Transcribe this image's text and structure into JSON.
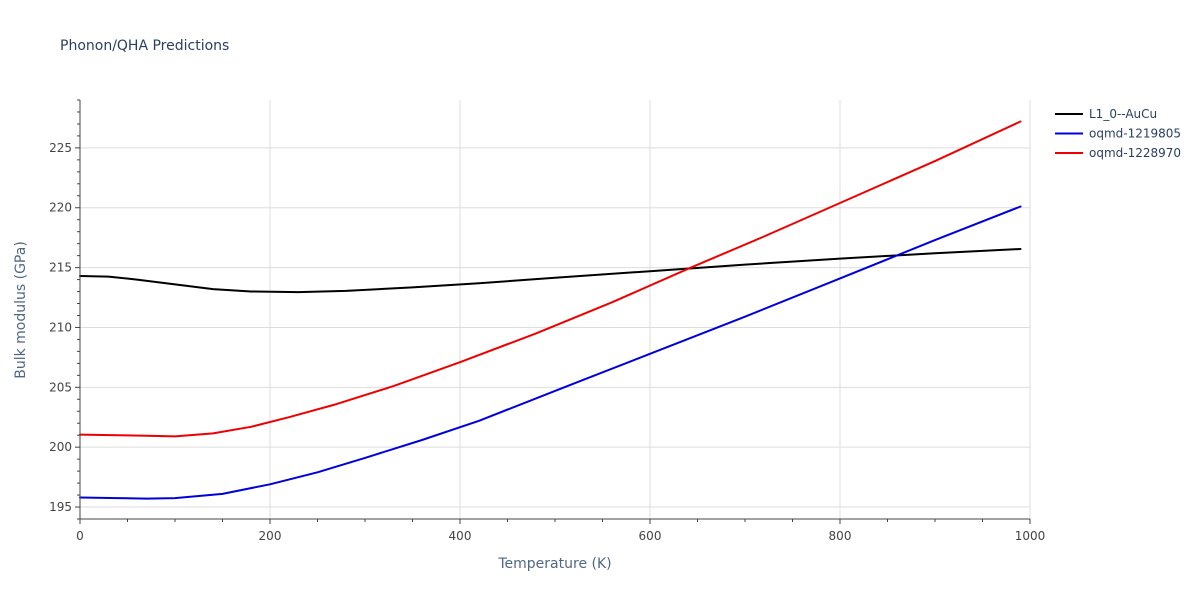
{
  "chart_data": {
    "type": "line",
    "title": "Phonon/QHA Predictions",
    "xlabel": "Temperature (K)",
    "ylabel": "Bulk modulus (GPa)",
    "xlim": [
      0,
      1000
    ],
    "ylim": [
      194,
      229
    ],
    "xticks": [
      0,
      200,
      400,
      600,
      800,
      1000
    ],
    "yticks": [
      195,
      200,
      205,
      210,
      215,
      220,
      225
    ],
    "grid": true,
    "legend_position": "top-right",
    "series": [
      {
        "name": "L1_0--AuCu",
        "color": "#000000",
        "x": [
          0,
          30,
          60,
          100,
          140,
          180,
          230,
          280,
          350,
          420,
          500,
          600,
          700,
          800,
          900,
          990
        ],
        "y": [
          214.3,
          214.25,
          214.0,
          213.6,
          213.2,
          213.0,
          212.95,
          213.05,
          213.35,
          213.7,
          214.15,
          214.7,
          215.25,
          215.75,
          216.2,
          216.55
        ]
      },
      {
        "name": "oqmd-1219805",
        "color": "#0000dd",
        "x": [
          0,
          40,
          70,
          100,
          150,
          200,
          250,
          300,
          360,
          420,
          500,
          600,
          700,
          800,
          900,
          990
        ],
        "y": [
          195.8,
          195.75,
          195.7,
          195.75,
          196.1,
          196.9,
          197.9,
          199.1,
          200.6,
          202.2,
          204.7,
          207.8,
          210.9,
          214.1,
          217.3,
          220.1
        ]
      },
      {
        "name": "oqmd-1228970",
        "color": "#ee0000",
        "x": [
          0,
          40,
          70,
          100,
          140,
          180,
          220,
          270,
          330,
          400,
          480,
          560,
          640,
          720,
          800,
          900,
          990
        ],
        "y": [
          201.05,
          201.0,
          200.95,
          200.9,
          201.15,
          201.7,
          202.5,
          203.6,
          205.1,
          207.1,
          209.5,
          212.1,
          214.9,
          217.6,
          220.4,
          223.9,
          227.2
        ]
      }
    ]
  }
}
